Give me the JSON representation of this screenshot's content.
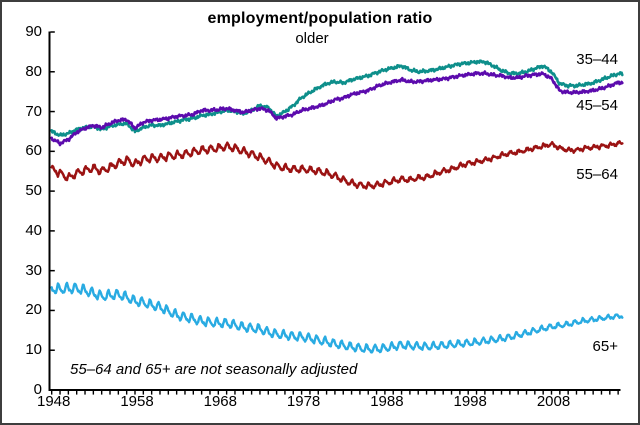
{
  "frame": {
    "border_color": "#3e3e3e",
    "background": "#ffffff"
  },
  "chart_data": {
    "type": "line",
    "title": "employment/population ratio",
    "subtitle": "older",
    "annotation": "55–64 and 65+ are not seasonally adjusted",
    "grid": false,
    "axis_color": "#000000",
    "x_axis": {
      "start_year": 1948,
      "end_year": 2016.5,
      "minor_tick_every_years": 1,
      "label_years": [
        1948,
        1958,
        1968,
        1978,
        1988,
        1998,
        2008
      ]
    },
    "y_axis": {
      "min": 0,
      "max": 90,
      "tick_step": 10,
      "tick_values": [
        0,
        10,
        20,
        30,
        40,
        50,
        60,
        70,
        80,
        90
      ]
    },
    "years_start": 1948,
    "years_step": 1,
    "series": [
      {
        "name": "35–44",
        "color": "#0e8f8b",
        "seasonally_adjusted": true,
        "annual_values": [
          65.0,
          64.0,
          64.5,
          65.5,
          66.0,
          66.3,
          65.5,
          66.3,
          66.8,
          67.0,
          65.0,
          66.0,
          66.6,
          66.5,
          67.0,
          67.5,
          68.0,
          68.3,
          69.0,
          69.3,
          69.8,
          70.3,
          70.0,
          69.5,
          70.3,
          71.5,
          71.0,
          68.8,
          70.0,
          71.5,
          73.5,
          74.8,
          76.0,
          77.0,
          77.5,
          77.2,
          78.0,
          78.5,
          79.0,
          79.8,
          80.5,
          81.0,
          81.5,
          80.5,
          80.0,
          80.2,
          80.5,
          81.0,
          81.5,
          82.0,
          82.2,
          82.5,
          82.5,
          81.5,
          80.3,
          79.6,
          79.6,
          80.0,
          80.8,
          81.5,
          80.0,
          77.0,
          76.5,
          76.5,
          76.8,
          77.2,
          78.0,
          78.8,
          79.5
        ],
        "wiggle": {
          "irregular_amp": 0.3,
          "seed": 3.1
        }
      },
      {
        "name": "45–54",
        "color": "#5c0bad",
        "seasonally_adjusted": true,
        "annual_values": [
          63.2,
          62.0,
          63.0,
          64.8,
          65.8,
          66.5,
          66.0,
          67.0,
          67.8,
          68.0,
          65.8,
          67.3,
          67.8,
          68.0,
          68.3,
          68.8,
          69.0,
          69.3,
          70.3,
          70.3,
          70.5,
          70.8,
          70.3,
          69.8,
          70.3,
          70.8,
          70.3,
          68.3,
          68.8,
          69.3,
          70.3,
          70.8,
          71.3,
          72.0,
          73.0,
          73.4,
          74.3,
          74.8,
          75.3,
          76.3,
          77.0,
          77.5,
          78.0,
          77.5,
          77.5,
          77.8,
          78.0,
          78.2,
          78.6,
          79.0,
          79.3,
          79.6,
          79.6,
          79.2,
          79.0,
          78.5,
          78.5,
          79.0,
          79.3,
          79.5,
          78.3,
          75.2,
          74.8,
          74.8,
          75.0,
          75.3,
          75.8,
          76.5,
          77.3
        ],
        "wiggle": {
          "irregular_amp": 0.3,
          "seed": 1.7
        }
      },
      {
        "name": "55–64",
        "color": "#9b1313",
        "seasonally_adjusted": false,
        "annual_values": [
          55.5,
          54.5,
          53.3,
          54.5,
          55.2,
          55.8,
          55.0,
          56.0,
          57.0,
          57.8,
          56.8,
          58.0,
          58.3,
          58.3,
          58.8,
          59.0,
          59.3,
          59.8,
          60.3,
          60.5,
          60.8,
          61.2,
          60.8,
          60.0,
          59.3,
          58.5,
          57.5,
          56.3,
          55.8,
          55.5,
          55.5,
          55.3,
          55.0,
          54.5,
          53.8,
          52.8,
          52.0,
          51.5,
          51.3,
          51.5,
          52.0,
          52.5,
          53.0,
          52.8,
          53.3,
          53.5,
          54.3,
          55.0,
          55.5,
          56.3,
          57.0,
          57.3,
          57.8,
          58.3,
          59.0,
          59.5,
          59.8,
          60.3,
          60.8,
          61.3,
          61.8,
          60.8,
          60.3,
          60.3,
          60.8,
          61.0,
          61.3,
          61.5,
          62.0
        ],
        "wiggle": {
          "seasonal_amp_start": 0.7,
          "seasonal_amp_end": 0.45,
          "phase": 0.8,
          "irregular_amp": 0.25,
          "seed": 5.2
        }
      },
      {
        "name": "65+",
        "color": "#29abe2",
        "seasonally_adjusted": false,
        "annual_values": [
          25.5,
          25.3,
          25.5,
          25.5,
          25.0,
          24.3,
          23.5,
          23.8,
          24.0,
          23.3,
          22.3,
          22.0,
          21.3,
          20.8,
          19.8,
          18.8,
          18.3,
          17.8,
          17.3,
          17.0,
          16.8,
          16.8,
          16.3,
          15.8,
          15.5,
          15.3,
          14.5,
          14.0,
          13.8,
          13.5,
          13.3,
          13.0,
          12.5,
          12.1,
          11.6,
          11.2,
          10.8,
          10.5,
          10.3,
          10.3,
          10.5,
          10.9,
          11.3,
          11.1,
          11.0,
          10.9,
          11.0,
          11.2,
          11.4,
          11.6,
          11.8,
          12.0,
          12.3,
          12.6,
          12.9,
          13.3,
          13.8,
          14.3,
          14.9,
          15.4,
          15.9,
          16.2,
          16.5,
          17.0,
          17.4,
          17.7,
          18.0,
          18.3,
          18.6
        ],
        "wiggle": {
          "seasonal_amp_start": 1.15,
          "seasonal_amp_end": 0.4,
          "phase": 2.6,
          "irregular_amp": 0.2,
          "seed": 2.4
        }
      }
    ]
  }
}
